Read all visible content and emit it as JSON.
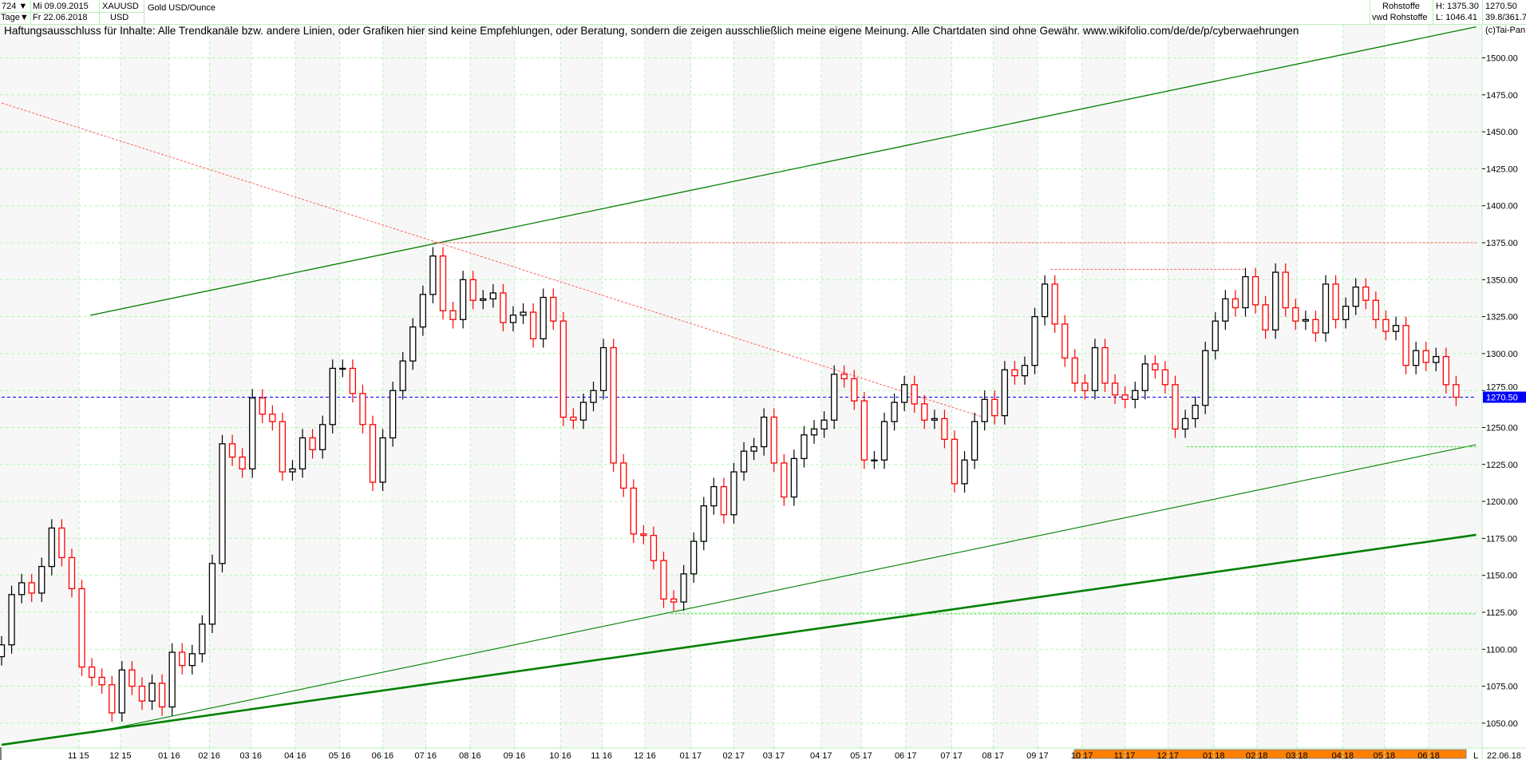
{
  "header": {
    "bars": "724",
    "interval": "Tage",
    "start_date": "Mi 09.09.2015",
    "end_date": "Fr 22.06.2018",
    "symbol": "XAUUSD",
    "currency": "USD",
    "name": "Gold USD/Ounce",
    "group": "Rohstoffe",
    "source": "vwd Rohstoffe",
    "high": "H: 1375.30",
    "low": "L: 1046.41",
    "last": "1270.50",
    "range_info": "39.8/361.7"
  },
  "disclaimer": "Haftungsausschluss für Inhalte: Alle Trendkanäle bzw. andere Linien, oder Grafiken hier sind keine Empfehlungen, oder Beratung, sondern die zeigen ausschließlich meine eigene Meinung. Alle Chartdaten sind ohne Gewähr.  www.wikifolio.com/de/de/p/cyberwaehrungen",
  "copyright": "(c)Tai-Pan",
  "chart_data": {
    "type": "candlestick",
    "title": "Gold USD/Ounce",
    "x_range": [
      "2015-09-09",
      "2018-06-22"
    ],
    "ylim": [
      1035,
      1525
    ],
    "grid": true,
    "y_ticks": [
      "1050.00",
      "1075.00",
      "1100.00",
      "1125.00",
      "1150.00",
      "1175.00",
      "1200.00",
      "1225.00",
      "1250.00",
      "1275.00",
      "1300.00",
      "1325.00",
      "1350.00",
      "1375.00",
      "1400.00",
      "1425.00",
      "1450.00",
      "1475.00",
      "1500.00"
    ],
    "x_ticks": [
      {
        "label": "11 15",
        "date": "2015-11-02"
      },
      {
        "label": "12 15",
        "date": "2015-12-01"
      },
      {
        "label": "01 16",
        "date": "2016-01-04"
      },
      {
        "label": "02 16",
        "date": "2016-02-01"
      },
      {
        "label": "03 16",
        "date": "2016-03-01"
      },
      {
        "label": "04 16",
        "date": "2016-04-01"
      },
      {
        "label": "05 16",
        "date": "2016-05-02"
      },
      {
        "label": "06 16",
        "date": "2016-06-01"
      },
      {
        "label": "07 16",
        "date": "2016-07-01"
      },
      {
        "label": "08 16",
        "date": "2016-08-01"
      },
      {
        "label": "09 16",
        "date": "2016-09-01"
      },
      {
        "label": "10 16",
        "date": "2016-10-03"
      },
      {
        "label": "11 16",
        "date": "2016-11-01"
      },
      {
        "label": "12 16",
        "date": "2016-12-01"
      },
      {
        "label": "01 17",
        "date": "2017-01-02"
      },
      {
        "label": "02 17",
        "date": "2017-02-01"
      },
      {
        "label": "03 17",
        "date": "2017-03-01"
      },
      {
        "label": "04 17",
        "date": "2017-04-03"
      },
      {
        "label": "05 17",
        "date": "2017-05-01"
      },
      {
        "label": "06 17",
        "date": "2017-06-01"
      },
      {
        "label": "07 17",
        "date": "2017-07-03"
      },
      {
        "label": "08 17",
        "date": "2017-08-01"
      },
      {
        "label": "09 17",
        "date": "2017-09-01"
      },
      {
        "label": "10 17",
        "date": "2017-10-02"
      },
      {
        "label": "11 17",
        "date": "2017-11-01"
      },
      {
        "label": "12 17",
        "date": "2017-12-01"
      },
      {
        "label": "01 18",
        "date": "2018-01-02"
      },
      {
        "label": "02 18",
        "date": "2018-02-01"
      },
      {
        "label": "03 18",
        "date": "2018-03-01"
      },
      {
        "label": "04 18",
        "date": "2018-04-02"
      },
      {
        "label": "05 18",
        "date": "2018-05-01"
      },
      {
        "label": "06 18",
        "date": "2018-06-01"
      }
    ],
    "x_end_label": "22.06.18",
    "scroll_marker": "L",
    "last_price_label": "1270.50",
    "colors": {
      "up": "#000000",
      "down": "#ff0000",
      "grid": "#b8f5b8",
      "trend": "#008000",
      "resistance": "#ff6060",
      "last": "#0000ff",
      "support": "#33dd33",
      "scrollbar": "#ff8000"
    },
    "weekly_closes": [
      1103,
      1137,
      1145,
      1138,
      1156,
      1182,
      1162,
      1141,
      1088,
      1081,
      1076,
      1057,
      1086,
      1075,
      1065,
      1077,
      1061,
      1098,
      1089,
      1097,
      1117,
      1158,
      1239,
      1230,
      1222,
      1270,
      1259,
      1254,
      1220,
      1222,
      1243,
      1235,
      1252,
      1290,
      1290,
      1273,
      1252,
      1213,
      1243,
      1275,
      1295,
      1318,
      1340,
      1366,
      1329,
      1323,
      1350,
      1336,
      1337,
      1341,
      1321,
      1326,
      1328,
      1310,
      1338,
      1322,
      1257,
      1255,
      1267,
      1275,
      1304,
      1226,
      1209,
      1178,
      1177,
      1160,
      1134,
      1132,
      1151,
      1173,
      1197,
      1210,
      1191,
      1220,
      1234,
      1237,
      1257,
      1226,
      1203,
      1229,
      1245,
      1249,
      1255,
      1286,
      1283,
      1268,
      1228,
      1228,
      1254,
      1267,
      1279,
      1266,
      1255,
      1256,
      1242,
      1212,
      1228,
      1254,
      1269,
      1258,
      1289,
      1285,
      1292,
      1325,
      1347,
      1320,
      1297,
      1280,
      1275,
      1304,
      1280,
      1272,
      1269,
      1275,
      1293,
      1289,
      1279,
      1249,
      1256,
      1265,
      1302,
      1322,
      1337,
      1331,
      1352,
      1333,
      1316,
      1355,
      1331,
      1322,
      1323,
      1314,
      1347,
      1323,
      1332,
      1345,
      1336,
      1323,
      1315,
      1319,
      1292,
      1302,
      1294,
      1298,
      1279,
      1270.5
    ],
    "first_week_end": "2015-09-11",
    "lines": [
      {
        "kind": "trend",
        "style": "solid",
        "width": 1.3,
        "from": [
          "2015-11-10",
          1325.9
        ],
        "to": [
          "2018-07-04",
          1521
        ]
      },
      {
        "kind": "trend",
        "style": "solid",
        "width": 1.1,
        "from": [
          "2015-11-11",
          1043.5
        ],
        "to": [
          "2018-07-04",
          1238.4
        ]
      },
      {
        "kind": "trend",
        "style": "solid",
        "width": 2.6,
        "from": [
          "2015-09-09",
          1035.4
        ],
        "to": [
          "2018-07-04",
          1177.4
        ]
      },
      {
        "kind": "resistance",
        "style": "dotted",
        "width": 1,
        "from": [
          "2015-09-09",
          1469.5
        ],
        "to": [
          "2017-07-24",
          1257.3
        ]
      },
      {
        "kind": "resistance",
        "style": "dotted",
        "width": 1,
        "from": [
          "2016-07-06",
          1375
        ],
        "to": [
          "2018-07-04",
          1375
        ]
      },
      {
        "kind": "resistance",
        "style": "dotted",
        "width": 1,
        "from": [
          "2017-09-10",
          1357
        ],
        "to": [
          "2018-01-23",
          1357
        ]
      },
      {
        "kind": "support",
        "style": "dotted",
        "width": 1,
        "from": [
          "2017-12-14",
          1237
        ],
        "to": [
          "2018-07-04",
          1237
        ]
      },
      {
        "kind": "support",
        "style": "dotted",
        "width": 1,
        "from": [
          "2016-12-19",
          1124
        ],
        "to": [
          "2018-07-04",
          1124
        ]
      },
      {
        "kind": "last",
        "style": "dashed",
        "width": 1,
        "from": [
          "2015-09-09",
          1270.5
        ],
        "to": [
          "2018-07-04",
          1270.5
        ]
      }
    ]
  }
}
